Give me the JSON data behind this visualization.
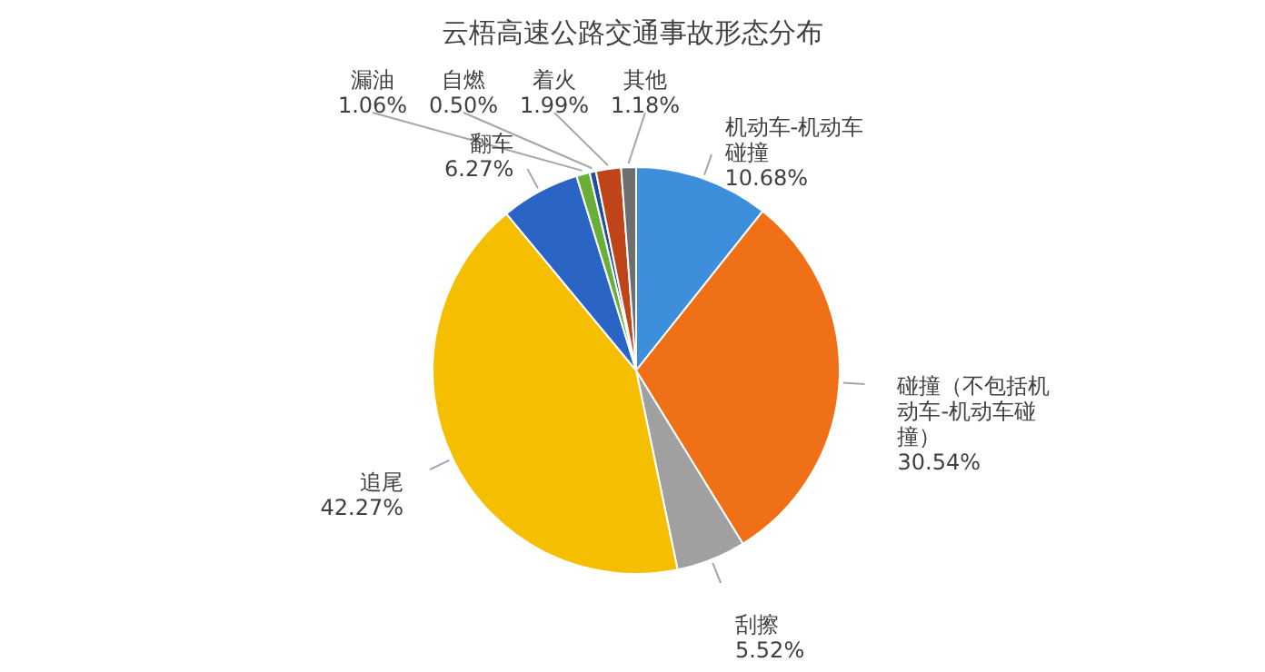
{
  "chart_data": {
    "type": "pie",
    "title": "云梧高速公路交通事故形态分布",
    "categories": [
      "机动车-机动车碰撞",
      "碰撞（不包括机动车-机动车碰撞）",
      "刮擦",
      "追尾",
      "翻车",
      "漏油",
      "自燃",
      "着火",
      "其他"
    ],
    "values": [
      10.68,
      30.54,
      5.52,
      42.27,
      6.27,
      1.06,
      0.5,
      1.99,
      1.18
    ],
    "value_labels": [
      "10.68%",
      "30.54%",
      "5.52%",
      "42.27%",
      "6.27%",
      "1.06%",
      "0.50%",
      "1.99%",
      "1.18%"
    ],
    "colors": [
      "#3d8fdc",
      "#f07018",
      "#a0a0a0",
      "#f5be00",
      "#2a64c4",
      "#6aae3a",
      "#1f4e9a",
      "#c0441a",
      "#6e6e6e"
    ]
  }
}
